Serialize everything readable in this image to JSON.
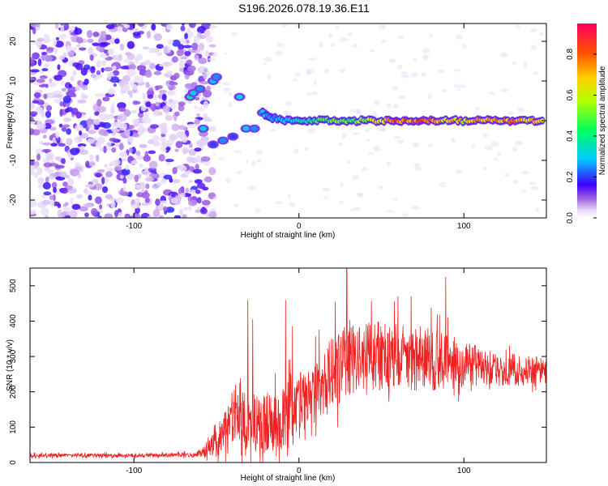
{
  "title": "S196.2026.078.19.36.E11",
  "chart_data": [
    {
      "type": "heatmap",
      "name": "spectrogram",
      "xlabel": "Height of straight line (km)",
      "ylabel": "Frequency (Hz)",
      "xlim": [
        -163,
        150
      ],
      "ylim": [
        -24.5,
        24.5
      ],
      "xticks": [
        -100,
        0,
        100
      ],
      "yticks": [
        -20,
        -10,
        0,
        10,
        20
      ],
      "colorbar": {
        "label": "Normalized spectral amplitude",
        "range": [
          0,
          0.95
        ],
        "ticks": [
          "0.0",
          "0.2",
          "0.4",
          "0.6",
          "0.8"
        ],
        "tick_values": [
          0.0,
          0.2,
          0.4,
          0.6,
          0.8
        ]
      },
      "noise_region_x": [
        -163,
        -60
      ],
      "signal_track": [
        {
          "x": -66,
          "f": 6,
          "a": 0.35
        },
        {
          "x": -64,
          "f": 7,
          "a": 0.3
        },
        {
          "x": -60,
          "f": 8,
          "a": 0.25
        },
        {
          "x": -58,
          "f": -2,
          "a": 0.3
        },
        {
          "x": -52,
          "f": 10,
          "a": 0.3
        },
        {
          "x": -50,
          "f": 11,
          "a": 0.25
        },
        {
          "x": -52,
          "f": -6,
          "a": 0.2
        },
        {
          "x": -46,
          "f": -5,
          "a": 0.25
        },
        {
          "x": -40,
          "f": -4,
          "a": 0.2
        },
        {
          "x": -36,
          "f": 6,
          "a": 0.3
        },
        {
          "x": -32,
          "f": -2,
          "a": 0.3
        },
        {
          "x": -27,
          "f": -2,
          "a": 0.25
        },
        {
          "x": -22,
          "f": 2,
          "a": 0.35
        },
        {
          "x": -18,
          "f": 1,
          "a": 0.3
        },
        {
          "x": -10,
          "f": 0,
          "a": 0.35
        },
        {
          "x": 0,
          "f": 0,
          "a": 0.4
        },
        {
          "x": 20,
          "f": 0,
          "a": 0.5
        },
        {
          "x": 40,
          "f": 0,
          "a": 0.6
        },
        {
          "x": 60,
          "f": 0,
          "a": 0.9
        },
        {
          "x": 80,
          "f": 0,
          "a": 0.85
        },
        {
          "x": 100,
          "f": 0,
          "a": 0.7
        },
        {
          "x": 120,
          "f": 0,
          "a": 0.85
        },
        {
          "x": 145,
          "f": 0,
          "a": 0.75
        }
      ]
    },
    {
      "type": "line",
      "name": "snr",
      "xlabel": "Height of straight line (km)",
      "ylabel": "SNR (10 * v/v)",
      "xlim": [
        -163,
        150
      ],
      "ylim": [
        0,
        550
      ],
      "xticks": [
        -100,
        0,
        100
      ],
      "yticks": [
        0,
        100,
        200,
        300,
        400,
        500
      ],
      "series": [
        {
          "name": "SNR",
          "color": "#ee2222",
          "envelope": [
            {
              "x": -163,
              "mean": 20,
              "spread": 12
            },
            {
              "x": -100,
              "mean": 20,
              "spread": 12
            },
            {
              "x": -62,
              "mean": 22,
              "spread": 15
            },
            {
              "x": -48,
              "mean": 60,
              "spread": 90
            },
            {
              "x": -40,
              "mean": 130,
              "spread": 170
            },
            {
              "x": -30,
              "mean": 110,
              "spread": 190
            },
            {
              "x": -15,
              "mean": 100,
              "spread": 200
            },
            {
              "x": 0,
              "mean": 170,
              "spread": 200
            },
            {
              "x": 20,
              "mean": 260,
              "spread": 230
            },
            {
              "x": 40,
              "mean": 300,
              "spread": 230
            },
            {
              "x": 60,
              "mean": 300,
              "spread": 220
            },
            {
              "x": 80,
              "mean": 290,
              "spread": 200
            },
            {
              "x": 100,
              "mean": 280,
              "spread": 150
            },
            {
              "x": 120,
              "mean": 265,
              "spread": 110
            },
            {
              "x": 150,
              "mean": 255,
              "spread": 90
            }
          ],
          "spikes": [
            {
              "x": -31,
              "y": 460
            },
            {
              "x": -28,
              "y": 405
            },
            {
              "x": -8,
              "y": 460
            },
            {
              "x": -4,
              "y": 385
            },
            {
              "x": 22,
              "y": 455
            },
            {
              "x": 29,
              "y": 550
            },
            {
              "x": 60,
              "y": 470
            },
            {
              "x": 68,
              "y": 470
            },
            {
              "x": 89,
              "y": 525
            }
          ]
        }
      ]
    }
  ]
}
